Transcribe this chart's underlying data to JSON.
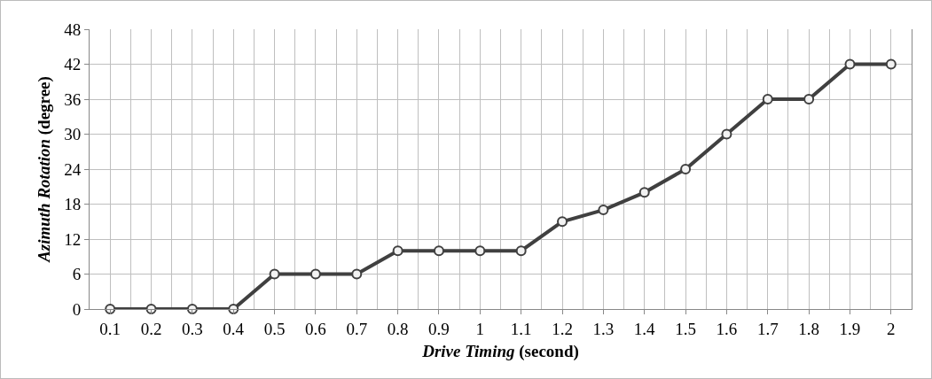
{
  "chart_data": {
    "type": "line",
    "xlabel": "Drive Timing (second)",
    "ylabel": "Azimuth Rotation (degree)",
    "categories": [
      "0.1",
      "0.2",
      "0.3",
      "0.4",
      "0.5",
      "0.6",
      "0.7",
      "0.8",
      "0.9",
      "1",
      "1.1",
      "1.2",
      "1.3",
      "1.4",
      "1.5",
      "1.6",
      "1.7",
      "1.8",
      "1.9",
      "2"
    ],
    "series": [
      {
        "color": "#404040",
        "values": [
          0,
          0,
          0,
          0,
          6,
          6,
          6,
          10,
          10,
          10,
          10,
          15,
          17,
          20,
          24,
          30,
          36,
          36,
          42,
          42
        ]
      }
    ],
    "ylim": [
      0,
      48
    ],
    "yticks": [
      0,
      6,
      12,
      18,
      24,
      30,
      36,
      42,
      48
    ],
    "grid": true,
    "marker": "circle",
    "line_style": "solid"
  }
}
